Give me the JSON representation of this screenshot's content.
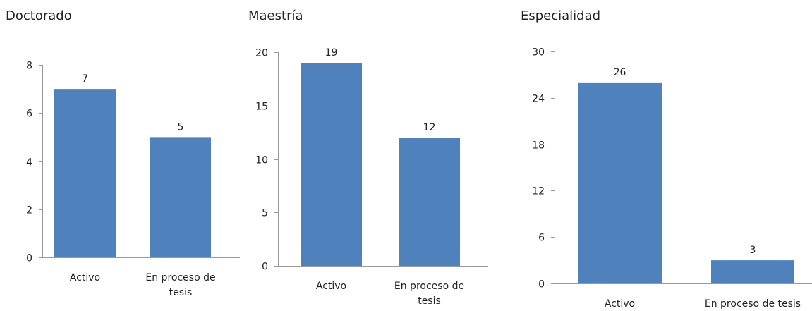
{
  "chart_data": [
    {
      "type": "bar",
      "title": "Doctorado",
      "categories": [
        "Activo",
        "En proceso de tesis"
      ],
      "category_lines": [
        [
          "Activo"
        ],
        [
          "En proceso de",
          "tesis"
        ]
      ],
      "values": [
        7,
        5
      ],
      "yticks": [
        0,
        2,
        4,
        6,
        8
      ],
      "ylim": [
        0,
        8
      ],
      "xlabel": "",
      "ylabel": "",
      "bar_color": "#4f81bd",
      "grid": false,
      "legend": "none"
    },
    {
      "type": "bar",
      "title": "Maestría",
      "categories": [
        "Activo",
        "En proceso de tesis"
      ],
      "category_lines": [
        [
          "Activo"
        ],
        [
          "En proceso de",
          "tesis"
        ]
      ],
      "values": [
        19,
        12
      ],
      "yticks": [
        0,
        5,
        10,
        15,
        20
      ],
      "ylim": [
        0,
        20
      ],
      "xlabel": "",
      "ylabel": "",
      "bar_color": "#4f81bd",
      "grid": false,
      "legend": "none"
    },
    {
      "type": "bar",
      "title": "Especialidad",
      "categories": [
        "Activo",
        "En proceso de tesis"
      ],
      "category_lines": [
        [
          "Activo"
        ],
        [
          "En proceso de tesis"
        ]
      ],
      "values": [
        26,
        3
      ],
      "yticks": [
        0,
        6,
        12,
        18,
        24,
        30
      ],
      "ylim": [
        0,
        30
      ],
      "xlabel": "",
      "ylabel": "",
      "bar_color": "#4f81bd",
      "grid": false,
      "legend": "none"
    }
  ]
}
